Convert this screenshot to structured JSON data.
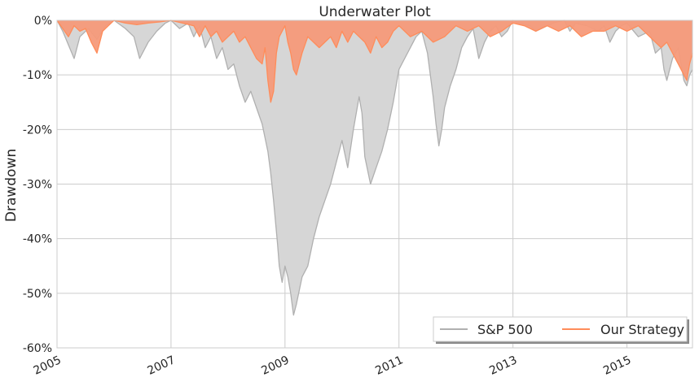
{
  "chart_data": {
    "type": "area",
    "title": "Underwater Plot",
    "xlabel": "",
    "ylabel": "Drawdown",
    "xlim": [
      2005.0,
      2016.15
    ],
    "ylim": [
      -60,
      0
    ],
    "x_ticks": [
      {
        "value": 2005,
        "label": "2005"
      },
      {
        "value": 2007,
        "label": "2007"
      },
      {
        "value": 2009,
        "label": "2009"
      },
      {
        "value": 2011,
        "label": "2011"
      },
      {
        "value": 2013,
        "label": "2013"
      },
      {
        "value": 2015,
        "label": "2015"
      }
    ],
    "y_ticks": [
      {
        "value": 0,
        "label": "0%"
      },
      {
        "value": -10,
        "label": "-10%"
      },
      {
        "value": -20,
        "label": "-20%"
      },
      {
        "value": -30,
        "label": "-30%"
      },
      {
        "value": -40,
        "label": "-40%"
      },
      {
        "value": -50,
        "label": "-50%"
      },
      {
        "value": -60,
        "label": "-60%"
      }
    ],
    "grid": true,
    "legend": {
      "position": "bottom-right",
      "columns": 2
    },
    "series": [
      {
        "name": "S&P 500",
        "color": "#b0b0b0",
        "fill": "#d6d6d6",
        "x": [
          2005.0,
          2005.1,
          2005.2,
          2005.3,
          2005.4,
          2005.55,
          2005.7,
          2005.85,
          2006.0,
          2006.2,
          2006.35,
          2006.45,
          2006.6,
          2006.75,
          2006.9,
          2007.0,
          2007.15,
          2007.3,
          2007.4,
          2007.5,
          2007.6,
          2007.7,
          2007.8,
          2007.9,
          2008.0,
          2008.1,
          2008.2,
          2008.3,
          2008.4,
          2008.5,
          2008.6,
          2008.7,
          2008.75,
          2008.8,
          2008.87,
          2008.9,
          2008.95,
          2009.0,
          2009.05,
          2009.1,
          2009.15,
          2009.2,
          2009.3,
          2009.4,
          2009.5,
          2009.6,
          2009.7,
          2009.8,
          2009.9,
          2010.0,
          2010.1,
          2010.2,
          2010.3,
          2010.35,
          2010.4,
          2010.5,
          2010.6,
          2010.7,
          2010.8,
          2010.9,
          2011.0,
          2011.1,
          2011.2,
          2011.3,
          2011.4,
          2011.5,
          2011.6,
          2011.65,
          2011.7,
          2011.75,
          2011.8,
          2011.9,
          2012.0,
          2012.1,
          2012.2,
          2012.3,
          2012.4,
          2012.5,
          2012.6,
          2012.7,
          2012.8,
          2012.9,
          2013.0,
          2013.1,
          2013.3,
          2013.4,
          2013.5,
          2013.7,
          2013.9,
          2014.0,
          2014.1,
          2014.3,
          2014.5,
          2014.6,
          2014.7,
          2014.8,
          2014.9,
          2015.0,
          2015.2,
          2015.4,
          2015.5,
          2015.6,
          2015.65,
          2015.7,
          2015.8,
          2015.9,
          2016.0,
          2016.05,
          2016.1,
          2016.15
        ],
        "y": [
          0,
          -2,
          -4.5,
          -7,
          -3,
          -1.5,
          -3.5,
          -1,
          0,
          -1.5,
          -3,
          -7,
          -4,
          -2,
          -0.5,
          0,
          -1.5,
          -0.5,
          -3,
          -1,
          -5,
          -3,
          -7,
          -5,
          -9,
          -8,
          -12,
          -15,
          -13,
          -16,
          -19,
          -24,
          -28,
          -33,
          -41,
          -45,
          -48,
          -45,
          -47,
          -50,
          -54,
          -52,
          -47,
          -45,
          -40,
          -36,
          -33,
          -30,
          -26,
          -22,
          -27,
          -20,
          -14,
          -17,
          -25,
          -30,
          -27,
          -24,
          -20,
          -15,
          -9,
          -7,
          -5,
          -3,
          -2,
          -6,
          -14,
          -19,
          -23,
          -20,
          -16,
          -12,
          -9,
          -5,
          -3,
          -1.5,
          -7,
          -4,
          -2,
          -1,
          -3,
          -2,
          0,
          -0.5,
          -1,
          -2,
          -1.5,
          -0.5,
          0,
          -2,
          -0.5,
          -1,
          -2,
          -1,
          -4,
          -2,
          -1,
          -0.5,
          -3,
          -2,
          -6,
          -5,
          -9,
          -11,
          -7,
          -5,
          -11,
          -12,
          -10,
          -9
        ]
      },
      {
        "name": "Our Strategy",
        "color": "#ff8c5a",
        "fill": "#f59a7a",
        "x": [
          2005.0,
          2005.1,
          2005.2,
          2005.3,
          2005.4,
          2005.5,
          2005.6,
          2005.7,
          2005.8,
          2005.9,
          2006.0,
          2006.2,
          2006.4,
          2006.6,
          2006.8,
          2007.0,
          2007.2,
          2007.4,
          2007.5,
          2007.6,
          2007.7,
          2007.8,
          2007.9,
          2008.0,
          2008.1,
          2008.2,
          2008.3,
          2008.4,
          2008.5,
          2008.6,
          2008.65,
          2008.7,
          2008.75,
          2008.8,
          2008.85,
          2008.9,
          2009.0,
          2009.05,
          2009.1,
          2009.15,
          2009.2,
          2009.3,
          2009.4,
          2009.5,
          2009.6,
          2009.7,
          2009.8,
          2009.9,
          2010.0,
          2010.1,
          2010.2,
          2010.3,
          2010.4,
          2010.5,
          2010.6,
          2010.7,
          2010.8,
          2010.9,
          2011.0,
          2011.2,
          2011.4,
          2011.6,
          2011.8,
          2012.0,
          2012.2,
          2012.4,
          2012.6,
          2012.8,
          2013.0,
          2013.2,
          2013.4,
          2013.6,
          2013.8,
          2014.0,
          2014.2,
          2014.4,
          2014.6,
          2014.8,
          2015.0,
          2015.2,
          2015.4,
          2015.6,
          2015.7,
          2015.8,
          2015.9,
          2016.0,
          2016.05,
          2016.1,
          2016.15
        ],
        "y": [
          0,
          -1.5,
          -3,
          -1,
          -2,
          -1.5,
          -4,
          -6,
          -2,
          -1,
          0,
          -0.5,
          -0.8,
          -0.5,
          -0.3,
          0,
          -0.5,
          -1,
          -3,
          -1,
          -3,
          -2,
          -4,
          -3,
          -2,
          -4,
          -3,
          -5,
          -7,
          -8,
          -5,
          -11,
          -15,
          -13,
          -6,
          -3,
          -1,
          -4,
          -6,
          -9,
          -10,
          -6,
          -3,
          -4,
          -5,
          -4,
          -3,
          -5,
          -2,
          -4,
          -2,
          -3,
          -4,
          -6,
          -3,
          -5,
          -4,
          -2,
          -1,
          -3,
          -2,
          -4,
          -3,
          -1,
          -2,
          -1,
          -3,
          -2,
          -0.5,
          -1,
          -2,
          -1,
          -2,
          -1,
          -3,
          -2,
          -2,
          -1,
          -2,
          -1,
          -3,
          -5,
          -4,
          -6,
          -8,
          -10,
          -11,
          -8,
          -6
        ]
      }
    ]
  }
}
